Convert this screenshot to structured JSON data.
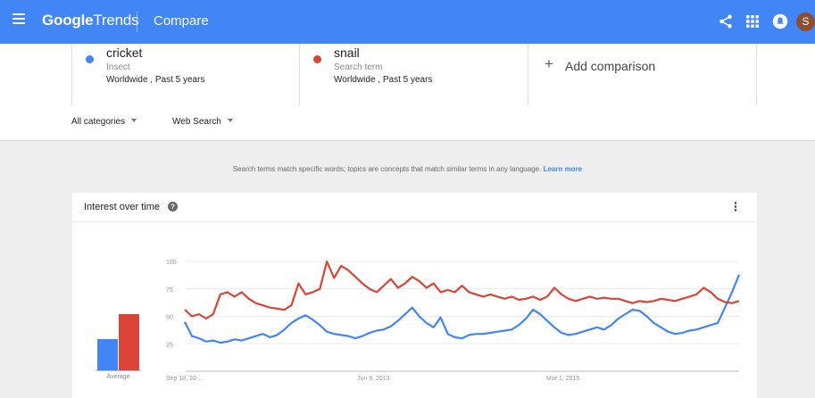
{
  "header": {
    "logo_google": "Google",
    "logo_trends": "Trends",
    "page_title": "Compare",
    "avatar_letter": "S",
    "icons": [
      "menu-icon",
      "share-icon",
      "apps-icon",
      "notifications-icon"
    ],
    "bar_color": "#4285f4"
  },
  "terms": [
    {
      "name": "cricket",
      "type": "Insect",
      "scope": "Worldwide , Past 5 years",
      "color": "#4285f4"
    },
    {
      "name": "snail",
      "type": "Search term",
      "scope": "Worldwide , Past 5 years",
      "color": "#db4437"
    }
  ],
  "add_comparison": {
    "label": "Add comparison"
  },
  "filters": {
    "category": "All categories",
    "search_type": "Web Search"
  },
  "hint": {
    "text": "Search terms match specific words; topics are concepts that match similar terms in any language.",
    "link": "Learn more"
  },
  "card": {
    "title": "Interest over time",
    "average_label": "Average"
  },
  "chart_data": [
    {
      "type": "bar",
      "categories": [
        "cricket",
        "snail"
      ],
      "values": [
        38,
        68
      ],
      "xlabel": "Average",
      "ylim": [
        0,
        100
      ]
    },
    {
      "type": "line",
      "ylim": [
        0,
        100
      ],
      "yticks": [
        25,
        50,
        75,
        100
      ],
      "x_tick_labels": [
        "Sep 18, 20…",
        "Jun 9, 2013",
        "Mar 1, 2015"
      ],
      "grid": true,
      "series": [
        {
          "name": "cricket",
          "color": "#4285f4",
          "values": [
            45,
            32,
            30,
            27,
            28,
            26,
            27,
            29,
            28,
            30,
            32,
            34,
            31,
            33,
            38,
            44,
            48,
            51,
            47,
            42,
            36,
            34,
            33,
            32,
            30,
            32,
            35,
            37,
            38,
            41,
            46,
            52,
            58,
            50,
            44,
            40,
            49,
            34,
            31,
            30,
            33,
            34,
            34,
            35,
            36,
            37,
            38,
            42,
            48,
            56,
            52,
            46,
            40,
            35,
            33,
            34,
            36,
            38,
            40,
            38,
            42,
            48,
            52,
            56,
            55,
            50,
            44,
            40,
            36,
            34,
            35,
            37,
            38,
            40,
            42,
            44,
            58,
            72,
            88
          ]
        },
        {
          "name": "snail",
          "color": "#db4437",
          "values": [
            56,
            50,
            52,
            48,
            52,
            70,
            72,
            68,
            72,
            66,
            62,
            60,
            58,
            57,
            56,
            60,
            80,
            70,
            72,
            75,
            100,
            85,
            96,
            92,
            86,
            80,
            75,
            72,
            78,
            84,
            76,
            80,
            86,
            82,
            76,
            80,
            72,
            74,
            72,
            78,
            72,
            70,
            68,
            70,
            68,
            66,
            68,
            65,
            66,
            68,
            65,
            68,
            76,
            70,
            66,
            64,
            66,
            68,
            66,
            67,
            66,
            66,
            64,
            62,
            64,
            63,
            64,
            66,
            65,
            64,
            66,
            68,
            70,
            76,
            72,
            66,
            63,
            62,
            64
          ]
        }
      ]
    }
  ]
}
